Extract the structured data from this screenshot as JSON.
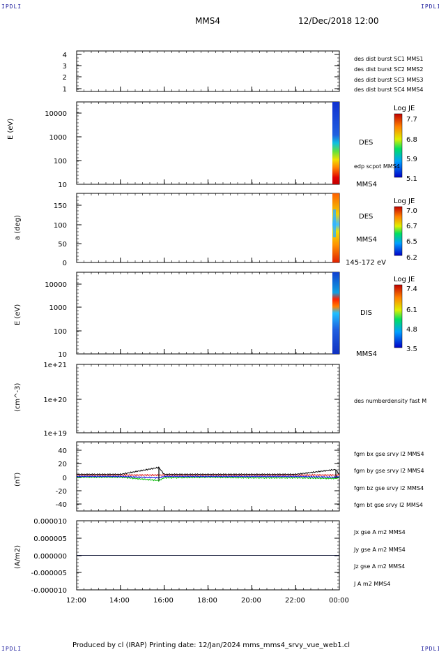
{
  "corner_tl": "IPDLI",
  "corner_tr": "IPDLI",
  "corner_bl": "IPDLI",
  "corner_br": "IPDLI",
  "header": {
    "spacecraft": "MMS4",
    "datetime": "12/Dec/2018 12:00"
  },
  "footer": {
    "text": "Produced by cl (IRAP)   Printing date: 12/Jan/2024   mms_mms4_srvy_vue_web1.cl"
  },
  "x_tick_labels": [
    "12:00",
    "14:00",
    "16:00",
    "18:00",
    "20:00",
    "22:00",
    "00:00"
  ],
  "panels": {
    "p1": {
      "y_ticks": [
        "4",
        "3",
        "2",
        "1"
      ],
      "legend": [
        {
          "text": "des dist burst SC1 MMS1",
          "color": "#0000dd"
        },
        {
          "text": "des dist burst SC2 MMS2",
          "color": "#cc00cc"
        },
        {
          "text": "des dist burst SC3 MMS3",
          "color": "#dd0000"
        },
        {
          "text": "des dist burst SC4 MMS4",
          "color": "#00bb00"
        }
      ]
    },
    "p2": {
      "ylabel": "E (eV)",
      "y_ticks": [
        "10000",
        "1000",
        "100",
        "10"
      ],
      "label1": "DES",
      "label2": "edp scpot MMS4",
      "label3": "MMS4",
      "colorbar": {
        "title": "Log JE",
        "ticks": [
          "7.7",
          "6.8",
          "5.9",
          "5.1"
        ]
      }
    },
    "p3": {
      "ylabel": "a (deg)",
      "y_ticks": [
        "150",
        "100",
        "50",
        "0"
      ],
      "label1": "DES",
      "label2": "MMS4",
      "label3": "145-172 eV",
      "colorbar": {
        "title": "Log JE",
        "ticks": [
          "7.0",
          "6.7",
          "6.5",
          "6.2"
        ]
      }
    },
    "p4": {
      "ylabel": "E (eV)",
      "y_ticks": [
        "10000",
        "1000",
        "100",
        "10"
      ],
      "label1": "DIS",
      "label2": "MMS4",
      "colorbar": {
        "title": "Log JE",
        "ticks": [
          "7.4",
          "6.1",
          "4.8",
          "3.5"
        ]
      }
    },
    "p5": {
      "ylabel": "(cm^-3)",
      "y_ticks": [
        "1e+21",
        "1e+20",
        "1e+19"
      ],
      "legend": [
        {
          "text": "des numberdensity fast M",
          "color": "#000000"
        }
      ]
    },
    "p6": {
      "ylabel": "(nT)",
      "y_ticks": [
        "40",
        "20",
        "0",
        "-20",
        "-40"
      ],
      "legend": [
        {
          "text": "fgm bx gse srvy l2 MMS4",
          "color": "#dd0000"
        },
        {
          "text": "fgm by gse srvy l2 MMS4",
          "color": "#00bb00"
        },
        {
          "text": "fgm bz gse srvy l2 MMS4",
          "color": "#0000dd"
        },
        {
          "text": "fgm bt gse srvy l2 MMS4",
          "color": "#000000"
        }
      ]
    },
    "p7": {
      "ylabel": "(A/m2)",
      "y_ticks": [
        "0.000010",
        "0.000005",
        "0.000000",
        "-0.000005",
        "-0.000010"
      ],
      "legend": [
        {
          "text": "Jx gse A m2 MMS4",
          "color": "#dd0000"
        },
        {
          "text": "Jy gse A m2 MMS4",
          "color": "#aacc00"
        },
        {
          "text": "Jz gse A m2 MMS4",
          "color": "#0000dd"
        },
        {
          "text": "J A m2 MMS4",
          "color": "#000000"
        }
      ]
    }
  },
  "chart_data": [
    {
      "type": "line",
      "title": "",
      "ylabel": "",
      "y_ticks": [
        4,
        3,
        2,
        1
      ],
      "series": [
        {
          "name": "des dist burst SC1 MMS1",
          "values": []
        },
        {
          "name": "des dist burst SC2 MMS2",
          "values": []
        },
        {
          "name": "des dist burst SC3 MMS3",
          "values": []
        },
        {
          "name": "des dist burst SC4 MMS4",
          "values": []
        }
      ]
    },
    {
      "type": "heatmap",
      "ylabel": "E (eV)",
      "y_scale": "log",
      "ylim": [
        10,
        20000
      ],
      "colorbar": {
        "title": "Log JE",
        "range": [
          5.1,
          7.7
        ]
      },
      "data_x_range": [
        "23:45",
        "00:00"
      ]
    },
    {
      "type": "heatmap",
      "ylabel": "a (deg)",
      "ylim": [
        0,
        180
      ],
      "colorbar": {
        "title": "Log JE",
        "range": [
          6.2,
          7.0
        ]
      },
      "data_x_range": [
        "23:45",
        "00:00"
      ]
    },
    {
      "type": "heatmap",
      "ylabel": "E (eV)",
      "y_scale": "log",
      "ylim": [
        10,
        20000
      ],
      "colorbar": {
        "title": "Log JE",
        "range": [
          3.5,
          7.4
        ]
      },
      "data_x_range": [
        "23:45",
        "00:00"
      ]
    },
    {
      "type": "line",
      "ylabel": "(cm^-3)",
      "y_scale": "log",
      "ylim": [
        1e+19,
        1e+21
      ],
      "series": [
        {
          "name": "des numberdensity fast M",
          "values": []
        }
      ]
    },
    {
      "type": "line",
      "ylabel": "(nT)",
      "ylim": [
        -50,
        50
      ],
      "x": [
        "12:00",
        "14:00",
        "15:45",
        "16:00",
        "18:00",
        "20:00",
        "22:00",
        "23:50",
        "00:00"
      ],
      "series": [
        {
          "name": "fgm bx gse srvy l2 MMS4",
          "values": [
            2,
            2,
            2,
            2,
            2,
            2,
            2,
            2,
            2
          ]
        },
        {
          "name": "fgm by gse srvy l2 MMS4",
          "values": [
            -1,
            -1,
            -6,
            -2,
            -1,
            -2,
            -2,
            -3,
            -2
          ]
        },
        {
          "name": "fgm bz gse srvy l2 MMS4",
          "values": [
            0,
            0,
            -2,
            0,
            0,
            0,
            0,
            -1,
            0
          ]
        },
        {
          "name": "fgm bt gse srvy l2 MMS4",
          "values": [
            3,
            3,
            13,
            3,
            3,
            3,
            3,
            10,
            3
          ]
        }
      ]
    },
    {
      "type": "line",
      "ylabel": "(A/m2)",
      "ylim": [
        -1e-05,
        1e-05
      ],
      "series": [
        {
          "name": "Jx gse A m2 MMS4",
          "values": [
            0,
            0,
            0,
            0,
            0,
            0,
            0
          ]
        },
        {
          "name": "Jy gse A m2 MMS4",
          "values": [
            0,
            0,
            0,
            0,
            0,
            0,
            0
          ]
        },
        {
          "name": "Jz gse A m2 MMS4",
          "values": [
            0,
            0,
            0,
            0,
            0,
            0,
            0
          ]
        },
        {
          "name": "J A m2 MMS4",
          "values": [
            0,
            0,
            0,
            0,
            0,
            0,
            0
          ]
        }
      ]
    }
  ]
}
